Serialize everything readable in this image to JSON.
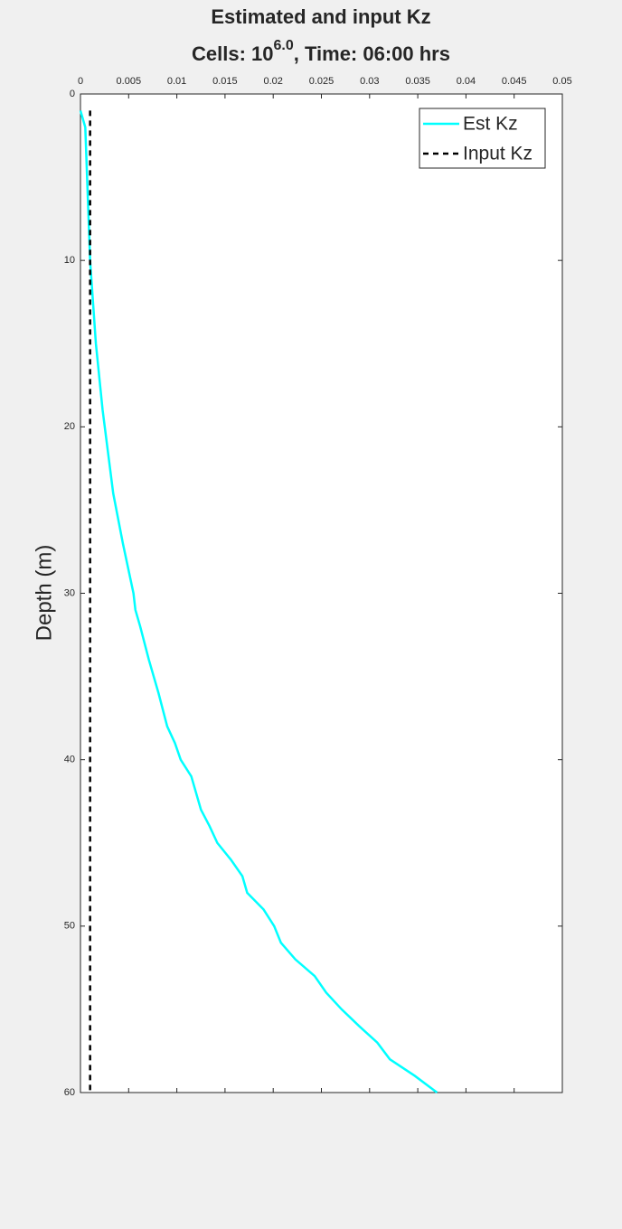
{
  "chart_data": {
    "type": "line",
    "title": "Estimated and input Kz",
    "subtitle": [
      "Cells: 10",
      "6.0",
      ", Time: 06:00 hrs"
    ],
    "y_label": "Depth (m)",
    "xlim": [
      0,
      0.05
    ],
    "xticks": [
      0,
      0.005,
      0.01,
      0.015,
      0.02,
      0.025,
      0.03,
      0.035,
      0.04,
      0.045,
      0.05
    ],
    "ylim": [
      0,
      60
    ],
    "yticks": [
      0,
      10,
      20,
      30,
      40,
      50,
      60
    ],
    "y_reversed": true,
    "x_axis_location": "top",
    "legend": "top-right",
    "series": [
      {
        "name": "Est Kz",
        "color": "#00ffff",
        "dash": false,
        "depth": [
          1,
          2,
          10,
          15,
          19,
          24,
          27,
          30,
          31,
          32,
          34,
          36,
          38,
          39,
          40,
          41,
          43,
          44,
          45,
          46,
          47,
          48,
          49,
          50,
          51,
          52,
          53,
          54,
          55,
          56,
          57,
          58,
          59,
          60
        ],
        "values": [
          0,
          0.0005,
          0.001,
          0.0016,
          0.0023,
          0.0034,
          0.0044,
          0.0055,
          0.0057,
          0.0062,
          0.0071,
          0.0081,
          0.009,
          0.0098,
          0.0104,
          0.0115,
          0.0125,
          0.0134,
          0.0142,
          0.0156,
          0.0168,
          0.0173,
          0.019,
          0.0201,
          0.0208,
          0.0223,
          0.0243,
          0.0255,
          0.0271,
          0.0289,
          0.0308,
          0.0321,
          0.0347,
          0.037
        ]
      },
      {
        "name": "Input Kz",
        "color": "#000000",
        "dash": true,
        "depth": [
          1,
          60
        ],
        "values": [
          0.001,
          0.001
        ]
      }
    ]
  }
}
